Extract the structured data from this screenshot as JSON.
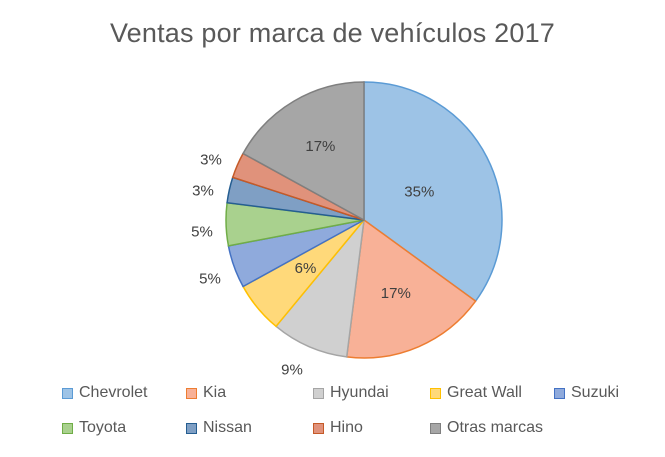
{
  "chart_data": {
    "type": "pie",
    "title": "Ventas por marca de vehículos 2017",
    "slices": [
      {
        "name": "Chevrolet",
        "value": 35,
        "label": "35%",
        "fill": "#9dc3e6",
        "stroke": "#5b9bd5"
      },
      {
        "name": "Kia",
        "value": 17,
        "label": "17%",
        "fill": "#f8b197",
        "stroke": "#ed7d31"
      },
      {
        "name": "Hyundai",
        "value": 9,
        "label": "9%",
        "fill": "#d0d0d0",
        "stroke": "#a5a5a5"
      },
      {
        "name": "Great Wall",
        "value": 6,
        "label": "6%",
        "fill": "#ffd97a",
        "stroke": "#ffc000"
      },
      {
        "name": "Suzuki",
        "value": 5,
        "label": "5%",
        "fill": "#8faadc",
        "stroke": "#4472c4"
      },
      {
        "name": "Toyota",
        "value": 5,
        "label": "5%",
        "fill": "#a9d18e",
        "stroke": "#70ad47"
      },
      {
        "name": "Nissan",
        "value": 3,
        "label": "3%",
        "fill": "#7f9fc4",
        "stroke": "#255e91"
      },
      {
        "name": "Hino",
        "value": 3,
        "label": "3%",
        "fill": "#e0927b",
        "stroke": "#c55a28"
      },
      {
        "name": "Otras marcas",
        "value": 17,
        "label": "17%",
        "fill": "#a6a6a6",
        "stroke": "#7f7f7f"
      }
    ],
    "legend_position": "bottom"
  }
}
